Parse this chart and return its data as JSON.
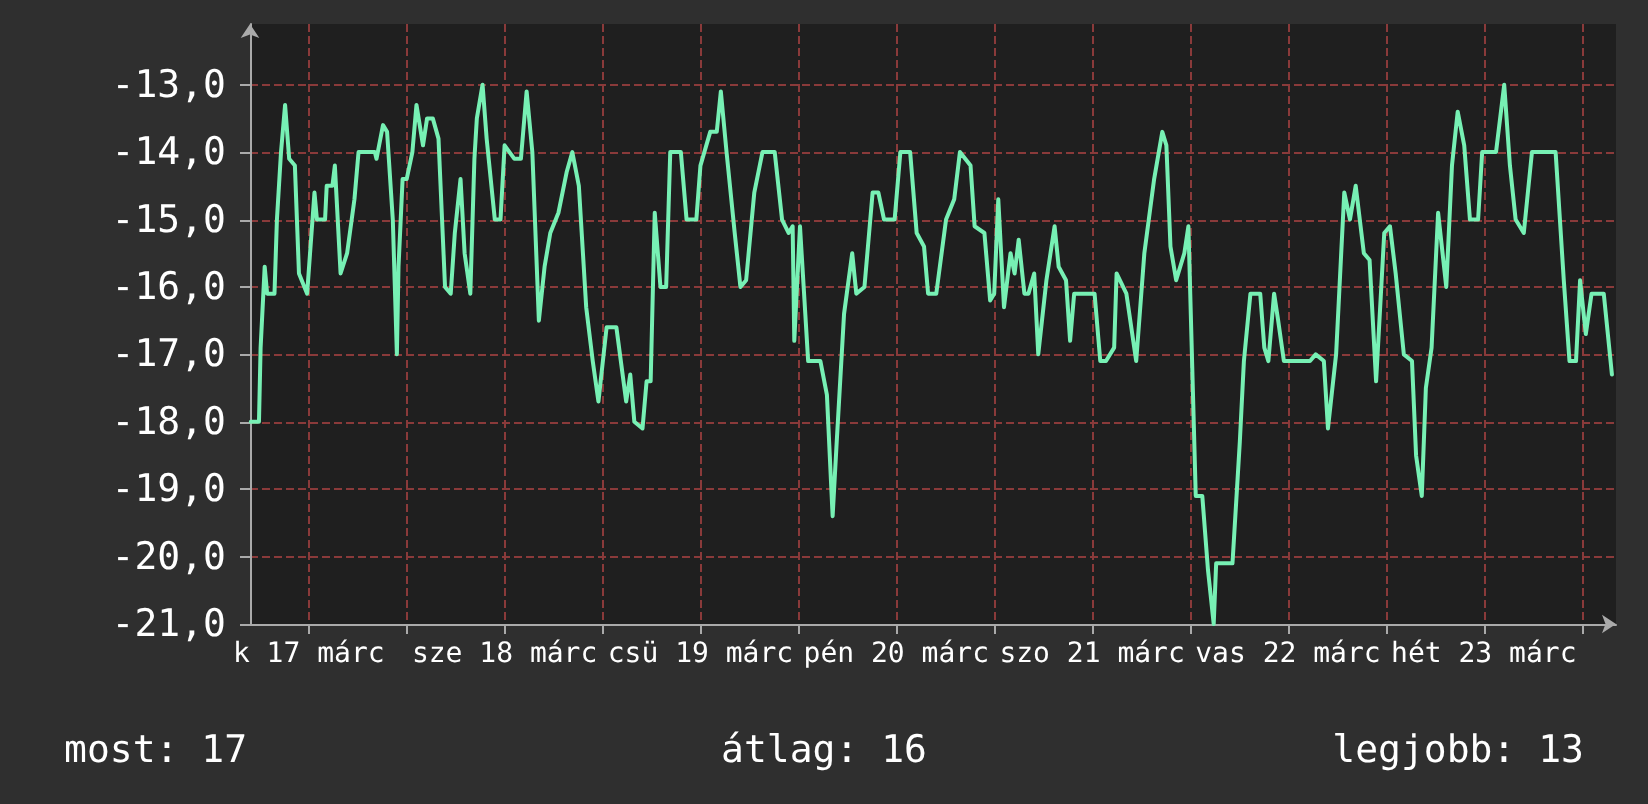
{
  "chart_data": {
    "type": "line",
    "marker": "none",
    "line_style": "solid",
    "grid": true,
    "xlim": [
      "--03-17T04:48",
      "--03-24T04:12"
    ],
    "xticks": [
      {
        "value": "--03-17T12:00",
        "label": "k 17 márc"
      },
      {
        "value": "--03-18T00:00",
        "label": null
      },
      {
        "value": "--03-18T12:00",
        "label": "sze 18 márc"
      },
      {
        "value": "--03-19T00:00",
        "label": null
      },
      {
        "value": "--03-19T12:00",
        "label": "csü 19 márc"
      },
      {
        "value": "--03-20T00:00",
        "label": null
      },
      {
        "value": "--03-20T12:00",
        "label": "pén 20 márc"
      },
      {
        "value": "--03-21T00:00",
        "label": null
      },
      {
        "value": "--03-21T12:00",
        "label": "szo 21 márc"
      },
      {
        "value": "--03-22T00:00",
        "label": null
      },
      {
        "value": "--03-22T12:00",
        "label": "vas 22 márc"
      },
      {
        "value": "--03-23T00:00",
        "label": null
      },
      {
        "value": "--03-23T12:00",
        "label": "hét 23 márc"
      },
      {
        "value": "--03-24T00:00",
        "label": null
      }
    ],
    "ylim": [
      -21,
      -12.1
    ],
    "yticks": [
      {
        "value": -21,
        "label": "-21,0"
      },
      {
        "value": -20,
        "label": "-20,0"
      },
      {
        "value": -19,
        "label": "-19,0"
      },
      {
        "value": -18,
        "label": "-18,0"
      },
      {
        "value": -17,
        "label": "-17,0"
      },
      {
        "value": -16,
        "label": "-16,0"
      },
      {
        "value": -15,
        "label": "-15,0"
      },
      {
        "value": -14,
        "label": "-14,0"
      },
      {
        "value": -13,
        "label": "-13,0"
      }
    ],
    "annotations": [
      "most: 17",
      "átlag: 16",
      "legjobb: 13"
    ],
    "series": [
      {
        "color": "#77f0b4",
        "x": [
          "--03-17T04:54",
          "--03-17T05:54",
          "--03-17T06:06",
          "--03-17T06:36",
          "--03-17T06:54",
          "--03-17T07:48",
          "--03-17T08:06",
          "--03-17T08:36",
          "--03-17T09:06",
          "--03-17T09:36",
          "--03-17T10:18",
          "--03-17T10:48",
          "--03-17T11:48",
          "--03-17T12:42",
          "--03-17T13:00",
          "--03-17T14:00",
          "--03-17T14:12",
          "--03-17T14:54",
          "--03-17T15:12",
          "--03-17T15:54",
          "--03-17T16:42",
          "--03-17T17:36",
          "--03-17T18:06",
          "--03-17T20:06",
          "--03-17T20:18",
          "--03-17T21:06",
          "--03-17T21:36",
          "--03-17T22:18",
          "--03-17T22:48",
          "--03-17T23:00",
          "--03-17T23:30",
          "--03-18T00:00",
          "--03-18T00:42",
          "--03-18T01:12",
          "--03-18T02:00",
          "--03-18T02:30",
          "--03-18T03:12",
          "--03-18T03:54",
          "--03-18T04:42",
          "--03-18T05:24",
          "--03-18T05:54",
          "--03-18T06:36",
          "--03-18T07:06",
          "--03-18T07:48",
          "--03-18T08:18",
          "--03-18T08:36",
          "--03-18T09:18",
          "--03-18T09:48",
          "--03-18T10:48",
          "--03-18T11:30",
          "--03-18T12:00",
          "--03-18T13:12",
          "--03-18T14:00",
          "--03-18T14:42",
          "--03-18T15:24",
          "--03-18T16:12",
          "--03-18T16:54",
          "--03-18T17:36",
          "--03-18T18:36",
          "--03-18T19:36",
          "--03-18T20:18",
          "--03-18T21:06",
          "--03-18T22:00",
          "--03-18T22:48",
          "--03-18T23:30",
          "--03-19T00:30",
          "--03-19T01:42",
          "--03-19T02:54",
          "--03-19T03:24",
          "--03-19T03:54",
          "--03-19T04:54",
          "--03-19T05:24",
          "--03-19T05:54",
          "--03-19T06:24",
          "--03-19T07:06",
          "--03-19T07:48",
          "--03-19T08:18",
          "--03-19T09:36",
          "--03-19T10:18",
          "--03-19T11:30",
          "--03-19T12:00",
          "--03-19T13:12",
          "--03-19T14:00",
          "--03-19T14:30",
          "--03-19T15:12",
          "--03-19T16:12",
          "--03-19T16:54",
          "--03-19T17:36",
          "--03-19T18:36",
          "--03-19T19:36",
          "--03-19T21:06",
          "--03-19T22:00",
          "--03-19T22:48",
          "--03-19T23:18",
          "--03-19T23:30",
          "--03-20T00:12",
          "--03-20T01:12",
          "--03-20T02:42",
          "--03-20T03:30",
          "--03-20T04:12",
          "--03-20T04:42",
          "--03-20T05:36",
          "--03-20T06:36",
          "--03-20T07:06",
          "--03-20T08:06",
          "--03-20T09:06",
          "--03-20T09:48",
          "--03-20T10:30",
          "--03-20T11:48",
          "--03-20T12:30",
          "--03-20T13:42",
          "--03-20T14:30",
          "--03-20T15:24",
          "--03-20T15:54",
          "--03-20T16:54",
          "--03-20T18:06",
          "--03-20T19:06",
          "--03-20T19:48",
          "--03-20T21:06",
          "--03-20T21:36",
          "--03-20T22:48",
          "--03-20T23:30",
          "--03-21T00:00",
          "--03-21T00:30",
          "--03-21T01:12",
          "--03-21T02:00",
          "--03-21T02:30",
          "--03-21T03:00",
          "--03-21T03:42",
          "--03-21T04:12",
          "--03-21T04:54",
          "--03-21T05:24",
          "--03-21T06:24",
          "--03-21T07:24",
          "--03-21T07:54",
          "--03-21T08:48",
          "--03-21T09:18",
          "--03-21T09:48",
          "--03-21T12:18",
          "--03-21T13:00",
          "--03-21T13:42",
          "--03-21T14:42",
          "--03-21T15:00",
          "--03-21T16:12",
          "--03-21T17:24",
          "--03-21T18:24",
          "--03-21T19:36",
          "--03-21T20:36",
          "--03-21T21:06",
          "--03-21T21:36",
          "--03-21T22:18",
          "--03-21T23:18",
          "--03-21T23:48",
          "--03-22T00:42",
          "--03-22T01:30",
          "--03-22T02:12",
          "--03-22T02:54",
          "--03-22T03:12",
          "--03-22T05:12",
          "--03-22T06:06",
          "--03-22T06:36",
          "--03-22T07:24",
          "--03-22T08:36",
          "--03-22T09:06",
          "--03-22T09:36",
          "--03-22T10:18",
          "--03-22T10:48",
          "--03-22T11:30",
          "--03-22T14:42",
          "--03-22T15:24",
          "--03-22T16:24",
          "--03-22T16:54",
          "--03-22T17:54",
          "--03-22T18:54",
          "--03-22T19:36",
          "--03-22T20:18",
          "--03-22T21:18",
          "--03-22T22:00",
          "--03-22T22:48",
          "--03-22T23:48",
          "--03-23T00:30",
          "--03-23T01:12",
          "--03-23T02:12",
          "--03-23T03:12",
          "--03-23T03:42",
          "--03-23T04:24",
          "--03-23T04:54",
          "--03-23T05:36",
          "--03-23T06:24",
          "--03-23T07:24",
          "--03-23T08:06",
          "--03-23T08:48",
          "--03-23T09:36",
          "--03-23T10:18",
          "--03-23T11:18",
          "--03-23T11:48",
          "--03-23T13:30",
          "--03-23T14:30",
          "--03-23T15:12",
          "--03-23T15:54",
          "--03-23T16:54",
          "--03-23T17:54",
          "--03-23T20:48",
          "--03-23T21:48",
          "--03-23T22:30",
          "--03-23T23:18",
          "--03-23T23:48",
          "--03-24T00:30",
          "--03-24T01:12",
          "--03-24T02:42",
          "--03-24T03:42"
        ],
        "values": [
          -18.0,
          -18.0,
          -16.9,
          -15.7,
          -16.1,
          -16.1,
          -15.0,
          -14.0,
          -13.3,
          -14.1,
          -14.2,
          -15.8,
          -16.1,
          -14.6,
          -15.0,
          -15.0,
          -14.5,
          -14.5,
          -14.2,
          -15.8,
          -15.5,
          -14.7,
          -14.0,
          -14.0,
          -14.1,
          -13.6,
          -13.7,
          -15.0,
          -17.0,
          -15.7,
          -14.4,
          -14.4,
          -14.0,
          -13.3,
          -13.9,
          -13.5,
          -13.5,
          -13.8,
          -16.0,
          -16.1,
          -15.2,
          -14.4,
          -15.5,
          -16.1,
          -14.1,
          -13.5,
          -13.0,
          -13.8,
          -15.0,
          -15.0,
          -13.9,
          -14.1,
          -14.1,
          -13.1,
          -14.0,
          -16.5,
          -15.7,
          -15.2,
          -14.9,
          -14.3,
          -14.0,
          -14.5,
          -16.3,
          -17.1,
          -17.7,
          -16.6,
          -16.6,
          -17.7,
          -17.3,
          -18.0,
          -18.1,
          -17.4,
          -17.4,
          -14.9,
          -16.0,
          -16.0,
          -14.0,
          -14.0,
          -15.0,
          -15.0,
          -14.2,
          -13.7,
          -13.7,
          -13.1,
          -14.0,
          -15.2,
          -16.0,
          -15.9,
          -14.6,
          -14.0,
          -14.0,
          -15.0,
          -15.2,
          -15.1,
          -16.8,
          -15.1,
          -17.1,
          -17.1,
          -17.6,
          -19.4,
          -18.3,
          -16.4,
          -15.5,
          -16.1,
          -16.0,
          -14.6,
          -14.6,
          -15.0,
          -15.0,
          -14.0,
          -14.0,
          -15.2,
          -15.4,
          -16.1,
          -16.1,
          -15.0,
          -14.7,
          -14.0,
          -14.2,
          -15.1,
          -15.2,
          -16.2,
          -16.1,
          -14.7,
          -16.3,
          -15.5,
          -15.8,
          -15.3,
          -16.1,
          -16.1,
          -15.8,
          -17.0,
          -15.9,
          -15.1,
          -15.7,
          -15.9,
          -16.8,
          -16.1,
          -16.1,
          -17.1,
          -17.1,
          -16.9,
          -15.8,
          -16.1,
          -17.1,
          -15.5,
          -14.4,
          -13.7,
          -13.9,
          -15.4,
          -15.9,
          -15.5,
          -15.1,
          -19.1,
          -19.1,
          -20.2,
          -21.0,
          -20.1,
          -20.1,
          -18.3,
          -17.1,
          -16.1,
          -16.1,
          -16.9,
          -17.1,
          -16.1,
          -16.5,
          -17.1,
          -17.1,
          -17.0,
          -17.1,
          -18.1,
          -17.0,
          -14.6,
          -15.0,
          -14.5,
          -15.5,
          -15.6,
          -17.4,
          -15.2,
          -15.1,
          -15.8,
          -17.0,
          -17.1,
          -18.5,
          -19.1,
          -17.5,
          -16.9,
          -14.9,
          -16.0,
          -14.2,
          -13.4,
          -13.9,
          -15.0,
          -15.0,
          -14.0,
          -14.0,
          -13.0,
          -14.2,
          -15.0,
          -15.2,
          -14.0,
          -14.0,
          -15.9,
          -17.1,
          -17.1,
          -15.9,
          -16.7,
          -16.1,
          -16.1,
          -17.3
        ]
      }
    ]
  }
}
